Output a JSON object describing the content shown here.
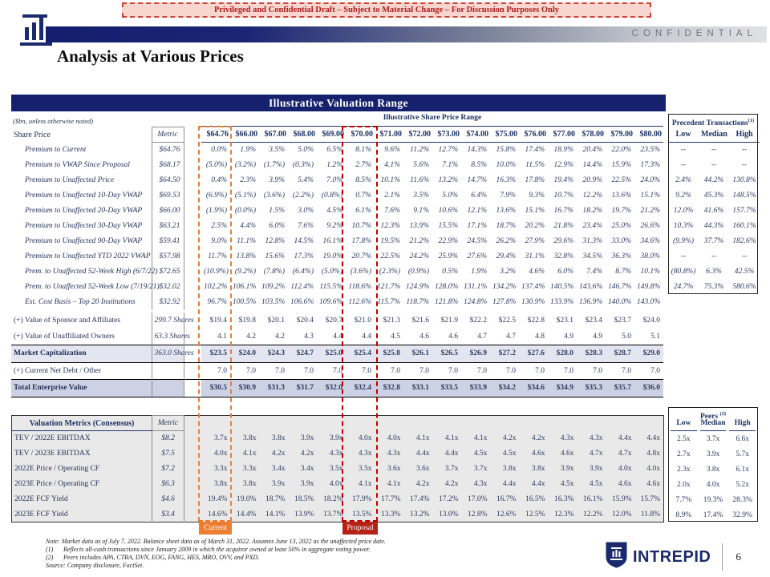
{
  "banner_text": "Privileged and Confidential Draft – Subject to Material Change – For Discussion Purposes Only",
  "header": {
    "confidential": "CONFIDENTIAL",
    "title": "Analysis at Various Prices"
  },
  "colors": {
    "navy": "#16216e",
    "header_text": "#1c3264",
    "current_accent": "#ED7D31",
    "proposal_accent": "#C00000",
    "mktcap_band": "#e3e6f0",
    "tev_band": "#ccd1e3",
    "metrics_bg": "#e9e9e9",
    "banner_bg": "#f8d5cf"
  },
  "table": {
    "title": "Illustrative Valuation Range",
    "units_note": "($bn, unless otherwise noted)",
    "range_label": "Illustrative Share Price Range",
    "precedent_label": "Precedent Transactions",
    "precedent_sup": "(1)",
    "share_price_label": "Share Price",
    "metric_label": "Metric",
    "prices": [
      "$64.76",
      "$66.00",
      "$67.00",
      "$68.00",
      "$69.00",
      "$70.00",
      "$71.00",
      "$72.00",
      "$73.00",
      "$74.00",
      "$75.00",
      "$76.00",
      "$77.00",
      "$78.00",
      "$79.00",
      "$80.00"
    ],
    "precedent_cols": [
      "Low",
      "Median",
      "High"
    ],
    "premium_rows": [
      {
        "label": "Premium to Current",
        "metric": "$64.76",
        "values": [
          "0.0%",
          "1.9%",
          "3.5%",
          "5.0%",
          "6.5%",
          "8.1%",
          "9.6%",
          "11.2%",
          "12.7%",
          "14.3%",
          "15.8%",
          "17.4%",
          "18.9%",
          "20.4%",
          "22.0%",
          "23.5%"
        ],
        "precedent": [
          "--",
          "--",
          "--"
        ]
      },
      {
        "label": "Premium to VWAP Since Proposal",
        "metric": "$68.17",
        "values": [
          "(5.0%)",
          "(3.2%)",
          "(1.7%)",
          "(0.3%)",
          "1.2%",
          "2.7%",
          "4.1%",
          "5.6%",
          "7.1%",
          "8.5%",
          "10.0%",
          "11.5%",
          "12.9%",
          "14.4%",
          "15.9%",
          "17.3%"
        ],
        "precedent": [
          "--",
          "--",
          "--"
        ]
      },
      {
        "label": "Premium to Unaffected Price",
        "metric": "$64.50",
        "values": [
          "0.4%",
          "2.3%",
          "3.9%",
          "5.4%",
          "7.0%",
          "8.5%",
          "10.1%",
          "11.6%",
          "13.2%",
          "14.7%",
          "16.3%",
          "17.8%",
          "19.4%",
          "20.9%",
          "22.5%",
          "24.0%"
        ],
        "precedent": [
          "2.4%",
          "44.2%",
          "130.8%"
        ]
      },
      {
        "label": "Premium to Unaffected 10-Day VWAP",
        "metric": "$69.53",
        "values": [
          "(6.9%)",
          "(5.1%)",
          "(3.6%)",
          "(2.2%)",
          "(0.8%)",
          "0.7%",
          "2.1%",
          "3.5%",
          "5.0%",
          "6.4%",
          "7.9%",
          "9.3%",
          "10.7%",
          "12.2%",
          "13.6%",
          "15.1%"
        ],
        "precedent": [
          "9.2%",
          "45.3%",
          "148.5%"
        ]
      },
      {
        "label": "Premium to Unaffected 20-Day VWAP",
        "metric": "$66.00",
        "values": [
          "(1.9%)",
          "(0.0%)",
          "1.5%",
          "3.0%",
          "4.5%",
          "6.1%",
          "7.6%",
          "9.1%",
          "10.6%",
          "12.1%",
          "13.6%",
          "15.1%",
          "16.7%",
          "18.2%",
          "19.7%",
          "21.2%"
        ],
        "precedent": [
          "12.0%",
          "41.6%",
          "157.7%"
        ]
      },
      {
        "label": "Premium to Unaffected 30-Day VWAP",
        "metric": "$63.21",
        "values": [
          "2.5%",
          "4.4%",
          "6.0%",
          "7.6%",
          "9.2%",
          "10.7%",
          "12.3%",
          "13.9%",
          "15.5%",
          "17.1%",
          "18.7%",
          "20.2%",
          "21.8%",
          "23.4%",
          "25.0%",
          "26.6%"
        ],
        "precedent": [
          "10.3%",
          "44.3%",
          "160.1%"
        ]
      },
      {
        "label": "Premium to Unaffected 90-Day VWAP",
        "metric": "$59.41",
        "values": [
          "9.0%",
          "11.1%",
          "12.8%",
          "14.5%",
          "16.1%",
          "17.8%",
          "19.5%",
          "21.2%",
          "22.9%",
          "24.5%",
          "26.2%",
          "27.9%",
          "29.6%",
          "31.3%",
          "33.0%",
          "34.6%"
        ],
        "precedent": [
          "(9.9%)",
          "37.7%",
          "182.6%"
        ]
      },
      {
        "label": "Premium to Unaffected YTD 2022 VWAP",
        "metric": "$57.98",
        "values": [
          "11.7%",
          "13.8%",
          "15.6%",
          "17.3%",
          "19.0%",
          "20.7%",
          "22.5%",
          "24.2%",
          "25.9%",
          "27.6%",
          "29.4%",
          "31.1%",
          "32.8%",
          "34.5%",
          "36.3%",
          "38.0%"
        ],
        "precedent": [
          "--",
          "--",
          "--"
        ]
      },
      {
        "label": "Prem. to Unaffected 52-Week High (6/7/22)",
        "metric": "$72.65",
        "values": [
          "(10.9%)",
          "(9.2%)",
          "(7.8%)",
          "(6.4%)",
          "(5.0%)",
          "(3.6%)",
          "(2.3%)",
          "(0.9%)",
          "0.5%",
          "1.9%",
          "3.2%",
          "4.6%",
          "6.0%",
          "7.4%",
          "8.7%",
          "10.1%"
        ],
        "precedent": [
          "(80.8%)",
          "6.3%",
          "42.5%"
        ]
      },
      {
        "label": "Prem. to Unaffected 52-Week Low (7/19/21)",
        "metric": "$32.02",
        "values": [
          "102.2%",
          "106.1%",
          "109.2%",
          "112.4%",
          "115.5%",
          "118.6%",
          "121.7%",
          "124.9%",
          "128.0%",
          "131.1%",
          "134.2%",
          "137.4%",
          "140.5%",
          "143.6%",
          "146.7%",
          "149.8%"
        ],
        "precedent": [
          "24.7%",
          "75.3%",
          "580.6%"
        ]
      },
      {
        "label": "Est. Cost Basis – Top 20 Institutions",
        "metric": "$32.92",
        "values": [
          "96.7%",
          "100.5%",
          "103.5%",
          "106.6%",
          "109.6%",
          "112.6%",
          "115.7%",
          "118.7%",
          "121.8%",
          "124.8%",
          "127.8%",
          "130.9%",
          "133.9%",
          "136.9%",
          "140.0%",
          "143.0%"
        ],
        "precedent": [
          "",
          "",
          ""
        ]
      }
    ],
    "value_rows": [
      {
        "label": "(+) Value of Sponsor and Affiliates",
        "metric": "299.7 Shares",
        "values": [
          "$19.4",
          "$19.8",
          "$20.1",
          "$20.4",
          "$20.7",
          "$21.0",
          "$21.3",
          "$21.6",
          "$21.9",
          "$22.2",
          "$22.5",
          "$22.8",
          "$23.1",
          "$23.4",
          "$23.7",
          "$24.0"
        ],
        "style": "plain"
      },
      {
        "label": "(+) Value of Unaffiliated Owners",
        "metric": "63.3 Shares",
        "values": [
          "4.1",
          "4.2",
          "4.2",
          "4.3",
          "4.4",
          "4.4",
          "4.5",
          "4.6",
          "4.6",
          "4.7",
          "4.7",
          "4.8",
          "4.9",
          "4.9",
          "5.0",
          "5.1"
        ],
        "style": "plain"
      },
      {
        "label": "Market Capitalization",
        "metric": "363.0 Shares",
        "values": [
          "$23.5",
          "$24.0",
          "$24.3",
          "$24.7",
          "$25.0",
          "$25.4",
          "$25.8",
          "$26.1",
          "$26.5",
          "$26.9",
          "$27.2",
          "$27.6",
          "$28.0",
          "$28.3",
          "$28.7",
          "$29.0"
        ],
        "style": "mktcap"
      },
      {
        "label": "(+) Current Net Debt / Other",
        "metric": "",
        "values": [
          "7.0",
          "7.0",
          "7.0",
          "7.0",
          "7.0",
          "7.0",
          "7.0",
          "7.0",
          "7.0",
          "7.0",
          "7.0",
          "7.0",
          "7.0",
          "7.0",
          "7.0",
          "7.0"
        ],
        "style": "netdebt"
      },
      {
        "label": "Total Enterprise Value",
        "metric": "",
        "values": [
          "$30.5",
          "$30.9",
          "$31.3",
          "$31.7",
          "$32.0",
          "$32.4",
          "$32.8",
          "$33.1",
          "$33.5",
          "$33.9",
          "$34.2",
          "$34.6",
          "$34.9",
          "$35.3",
          "$35.7",
          "$36.0"
        ],
        "style": "tev"
      }
    ],
    "metrics_header": "Valuation Metrics (Consensus)",
    "peers_label": "Peers",
    "peers_sup": "(2)",
    "peers_cols": [
      "Low",
      "Median",
      "High"
    ],
    "metrics_rows": [
      {
        "label": "TEV / 2022E EBITDAX",
        "metric": "$8.2",
        "values": [
          "3.7x",
          "3.8x",
          "3.8x",
          "3.9x",
          "3.9x",
          "4.0x",
          "4.0x",
          "4.1x",
          "4.1x",
          "4.1x",
          "4.2x",
          "4.2x",
          "4.3x",
          "4.3x",
          "4.4x",
          "4.4x"
        ],
        "peers": [
          "2.5x",
          "3.7x",
          "6.6x"
        ]
      },
      {
        "label": "TEV / 2023E EBITDAX",
        "metric": "$7.5",
        "values": [
          "4.0x",
          "4.1x",
          "4.2x",
          "4.2x",
          "4.3x",
          "4.3x",
          "4.3x",
          "4.4x",
          "4.4x",
          "4.5x",
          "4.5x",
          "4.6x",
          "4.6x",
          "4.7x",
          "4.7x",
          "4.8x"
        ],
        "peers": [
          "2.7x",
          "3.9x",
          "5.7x"
        ]
      },
      {
        "label": "2022E Price / Operating CF",
        "metric": "$7.2",
        "values": [
          "3.3x",
          "3.3x",
          "3.4x",
          "3.4x",
          "3.5x",
          "3.5x",
          "3.6x",
          "3.6x",
          "3.7x",
          "3.7x",
          "3.8x",
          "3.8x",
          "3.9x",
          "3.9x",
          "4.0x",
          "4.0x"
        ],
        "peers": [
          "2.3x",
          "3.8x",
          "6.1x"
        ]
      },
      {
        "label": "2023E Price / Operating CF",
        "metric": "$6.3",
        "values": [
          "3.8x",
          "3.8x",
          "3.9x",
          "3.9x",
          "4.0x",
          "4.1x",
          "4.1x",
          "4.2x",
          "4.2x",
          "4.3x",
          "4.4x",
          "4.4x",
          "4.5x",
          "4.5x",
          "4.6x",
          "4.6x"
        ],
        "peers": [
          "2.0x",
          "4.0x",
          "5.2x"
        ]
      },
      {
        "label": "2022E FCF Yield",
        "metric": "$4.6",
        "values": [
          "19.4%",
          "19.0%",
          "18.7%",
          "18.5%",
          "18.2%",
          "17.9%",
          "17.7%",
          "17.4%",
          "17.2%",
          "17.0%",
          "16.7%",
          "16.5%",
          "16.3%",
          "16.1%",
          "15.9%",
          "15.7%"
        ],
        "peers": [
          "7.7%",
          "19.3%",
          "28.3%"
        ]
      },
      {
        "label": "2023E FCF Yield",
        "metric": "$3.4",
        "values": [
          "14.6%",
          "14.4%",
          "14.1%",
          "13.9%",
          "13.7%",
          "13.5%",
          "13.3%",
          "13.2%",
          "13.0%",
          "12.8%",
          "12.6%",
          "12.5%",
          "12.3%",
          "12.2%",
          "12.0%",
          "11.8%"
        ],
        "peers": [
          "8.9%",
          "17.4%",
          "32.9%"
        ]
      }
    ],
    "current_label": "Current",
    "proposal_label": "Proposal"
  },
  "footnotes": {
    "note": "Note: Market data as of July 7, 2022. Balance sheet data as of March 31, 2022. Assumes June 13, 2022 as the unaffected price date.",
    "fn1_num": "(1)",
    "fn1": "Reflects all-cash transactions since January 2009 in which the acquiror owned at least 50% in aggregate voting power.",
    "fn2_num": "(2)",
    "fn2": "Peers includes APA, CTRA, DVN, EOG, FANG, HES, MRO, OVV, and PXD.",
    "source": "Source: Company disclosure, FactSet."
  },
  "footer": {
    "brand": "INTREPID",
    "page": "6"
  }
}
